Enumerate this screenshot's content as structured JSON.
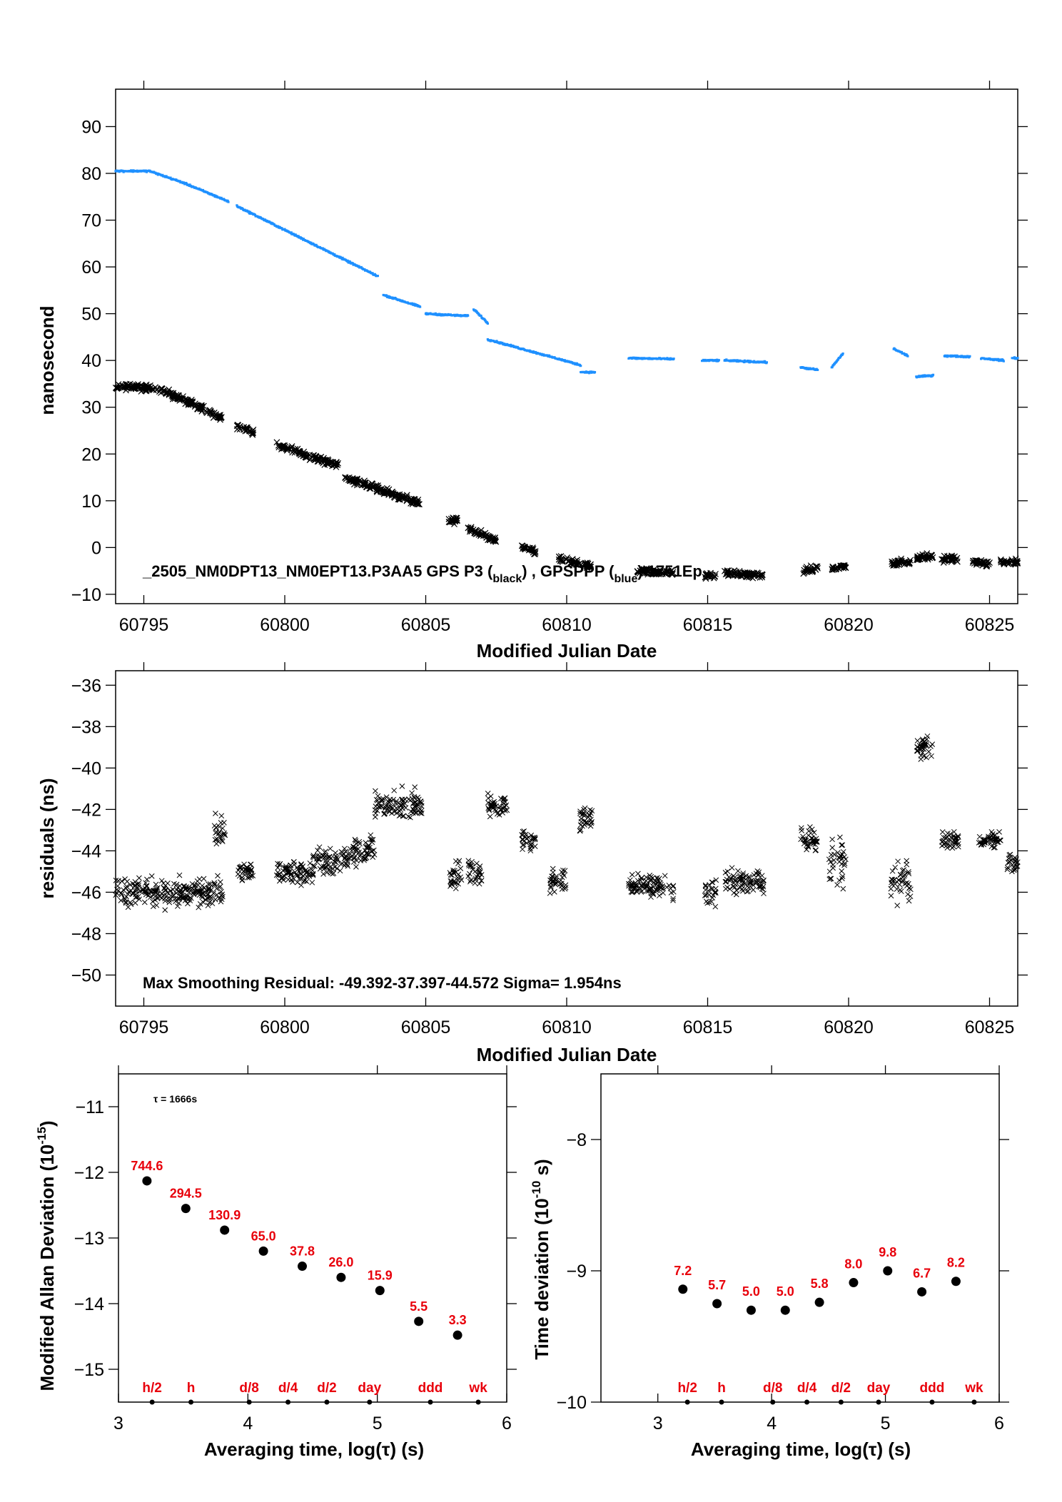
{
  "colors": {
    "black_series": "#000000",
    "blue_series": "#1e90ff",
    "label_red": "#e8000b"
  },
  "chart_data": [
    {
      "type": "scatter",
      "name": "clock-comparison",
      "xlabel": "Modified Julian Date",
      "ylabel": "nanosecond",
      "xlim": [
        60794.0,
        60826.0
      ],
      "ylim": [
        -12,
        98
      ],
      "xticks": [
        60795,
        60800,
        60805,
        60810,
        60815,
        60820,
        60825
      ],
      "yticks": [
        -10,
        0,
        10,
        20,
        30,
        40,
        50,
        60,
        70,
        80,
        90
      ],
      "annotation": "_2505_NM0DPT13_NM0EPT13.P3AA5     GPS P3 (",
      "annotation_sub1": "black",
      "annotation_mid": ") , GPSPPP (",
      "annotation_sub2": "blue",
      "annotation_end": ")   1751Ep",
      "blue_segments": [
        {
          "x": [
            60794.0,
            60795.2,
            60796.4,
            60798.0
          ],
          "y": [
            80.5,
            80.5,
            78.0,
            74.0
          ]
        },
        {
          "x": [
            60798.3,
            60803.3
          ],
          "y": [
            73.0,
            58.0
          ]
        },
        {
          "x": [
            60803.5,
            60804.8
          ],
          "y": [
            54.0,
            51.5
          ]
        },
        {
          "x": [
            60805.0,
            60806.5
          ],
          "y": [
            50.0,
            49.5
          ]
        },
        {
          "x": [
            60806.7,
            60807.2
          ],
          "y": [
            51.0,
            48.0
          ]
        },
        {
          "x": [
            60807.2,
            60810.5
          ],
          "y": [
            44.5,
            39.0
          ]
        },
        {
          "x": [
            60810.5,
            60811.0
          ],
          "y": [
            37.5,
            37.5
          ]
        },
        {
          "x": [
            60812.2,
            60813.8
          ],
          "y": [
            40.5,
            40.3
          ]
        },
        {
          "x": [
            60814.8,
            60815.4
          ],
          "y": [
            40.0,
            40.0
          ]
        },
        {
          "x": [
            60815.6,
            60817.1
          ],
          "y": [
            40.0,
            39.6
          ]
        },
        {
          "x": [
            60818.3,
            60818.9
          ],
          "y": [
            38.5,
            38.0
          ]
        },
        {
          "x": [
            60819.4,
            60819.8
          ],
          "y": [
            38.5,
            41.5
          ]
        },
        {
          "x": [
            60821.6,
            60822.1
          ],
          "y": [
            42.5,
            41.0
          ]
        },
        {
          "x": [
            60822.4,
            60823.0
          ],
          "y": [
            36.5,
            36.8
          ]
        },
        {
          "x": [
            60823.4,
            60824.3
          ],
          "y": [
            41.0,
            40.8
          ]
        },
        {
          "x": [
            60824.7,
            60825.5
          ],
          "y": [
            40.5,
            40.0
          ]
        },
        {
          "x": [
            60825.8,
            60826.0
          ],
          "y": [
            40.5,
            40.5
          ]
        }
      ],
      "black_segments": [
        {
          "x": [
            60794.0,
            60795.5,
            60797.0,
            60797.8
          ],
          "y": [
            34.5,
            34.0,
            30.0,
            27.5
          ]
        },
        {
          "x": [
            60798.3,
            60798.9
          ],
          "y": [
            26.0,
            24.5
          ]
        },
        {
          "x": [
            60799.7,
            60801.9
          ],
          "y": [
            22.0,
            17.5
          ]
        },
        {
          "x": [
            60802.1,
            60804.8
          ],
          "y": [
            15.0,
            9.5
          ]
        },
        {
          "x": [
            60805.8,
            60806.2
          ],
          "y": [
            6.0,
            5.5
          ]
        },
        {
          "x": [
            60806.5,
            60807.5
          ],
          "y": [
            4.0,
            1.5
          ]
        },
        {
          "x": [
            60808.4,
            60808.9
          ],
          "y": [
            0.0,
            -1.0
          ]
        },
        {
          "x": [
            60809.7,
            60810.9
          ],
          "y": [
            -2.5,
            -4.0
          ]
        },
        {
          "x": [
            60812.5,
            60813.8
          ],
          "y": [
            -5.0,
            -5.5
          ]
        },
        {
          "x": [
            60814.9,
            60815.3
          ],
          "y": [
            -6.0,
            -6.0
          ]
        },
        {
          "x": [
            60815.6,
            60817.0
          ],
          "y": [
            -5.5,
            -6.0
          ]
        },
        {
          "x": [
            60818.4,
            60818.9
          ],
          "y": [
            -5.0,
            -4.5
          ]
        },
        {
          "x": [
            60819.4,
            60819.9
          ],
          "y": [
            -4.5,
            -4.0
          ]
        },
        {
          "x": [
            60821.5,
            60822.2
          ],
          "y": [
            -3.5,
            -3.0
          ]
        },
        {
          "x": [
            60822.4,
            60823.0
          ],
          "y": [
            -2.0,
            -2.0
          ]
        },
        {
          "x": [
            60823.3,
            60823.9
          ],
          "y": [
            -2.5,
            -2.5
          ]
        },
        {
          "x": [
            60824.4,
            60825.0
          ],
          "y": [
            -3.0,
            -3.5
          ]
        },
        {
          "x": [
            60825.4,
            60826.0
          ],
          "y": [
            -3.0,
            -3.0
          ]
        }
      ]
    },
    {
      "type": "scatter",
      "name": "residuals",
      "xlabel": "Modified Julian Date",
      "ylabel": "residuals (ns)",
      "xlim": [
        60794.0,
        60826.0
      ],
      "ylim": [
        -51.5,
        -35.3
      ],
      "xticks": [
        60795,
        60800,
        60805,
        60810,
        60815,
        60820,
        60825
      ],
      "yticks": [
        -50,
        -48,
        -46,
        -44,
        -42,
        -40,
        -38,
        -36
      ],
      "annotation": "Max Smoothing Residual: -49.392-37.397-44.572  Sigma= 1.954ns",
      "clusters": [
        {
          "x": [
            60794.0,
            60797.8
          ],
          "center": -46.0,
          "spread": 1.0
        },
        {
          "x": [
            60797.5,
            60797.9
          ],
          "center": -43.0,
          "spread": 1.6
        },
        {
          "x": [
            60798.3,
            60798.9
          ],
          "center": -45.0,
          "spread": 0.7
        },
        {
          "x": [
            60799.7,
            60801.0
          ],
          "center": -45.0,
          "spread": 0.9
        },
        {
          "x": [
            60801.0,
            60802.3
          ],
          "center": -44.5,
          "spread": 1.0
        },
        {
          "x": [
            60802.3,
            60803.2
          ],
          "center": -44.0,
          "spread": 1.0
        },
        {
          "x": [
            60803.2,
            60804.9
          ],
          "center": -41.8,
          "spread": 1.0
        },
        {
          "x": [
            60805.8,
            60806.3
          ],
          "center": -45.2,
          "spread": 1.1
        },
        {
          "x": [
            60806.5,
            60807.0
          ],
          "center": -45.0,
          "spread": 1.0
        },
        {
          "x": [
            60807.2,
            60807.9
          ],
          "center": -41.8,
          "spread": 0.8
        },
        {
          "x": [
            60808.4,
            60808.9
          ],
          "center": -43.5,
          "spread": 0.8
        },
        {
          "x": [
            60809.4,
            60810.0
          ],
          "center": -45.5,
          "spread": 1.0
        },
        {
          "x": [
            60810.4,
            60810.9
          ],
          "center": -42.5,
          "spread": 0.8
        },
        {
          "x": [
            60812.2,
            60813.8
          ],
          "center": -45.7,
          "spread": 0.8
        },
        {
          "x": [
            60814.9,
            60815.3
          ],
          "center": -46.0,
          "spread": 0.8
        },
        {
          "x": [
            60815.6,
            60817.0
          ],
          "center": -45.5,
          "spread": 0.9
        },
        {
          "x": [
            60818.3,
            60818.9
          ],
          "center": -43.5,
          "spread": 1.0
        },
        {
          "x": [
            60819.3,
            60819.9
          ],
          "center": -44.5,
          "spread": 1.8
        },
        {
          "x": [
            60821.5,
            60822.2
          ],
          "center": -45.5,
          "spread": 1.2
        },
        {
          "x": [
            60822.4,
            60823.0
          ],
          "center": -39.0,
          "spread": 0.7
        },
        {
          "x": [
            60823.3,
            60823.9
          ],
          "center": -43.5,
          "spread": 0.6
        },
        {
          "x": [
            60824.6,
            60825.4
          ],
          "center": -43.5,
          "spread": 0.6
        },
        {
          "x": [
            60825.6,
            60826.0
          ],
          "center": -44.5,
          "spread": 0.7
        }
      ]
    },
    {
      "type": "scatter",
      "name": "modified-allan-deviation",
      "xlabel": "Averaging time, log(τ) (s)",
      "ylabel": "Modified Allan Deviation (10",
      "ylabel_sup": "-15",
      "ylabel_end": ")",
      "xlim": [
        3,
        6
      ],
      "ylim": [
        -15.5,
        -10.5
      ],
      "xticks": [
        3,
        4,
        5,
        6
      ],
      "yticks": [
        -15,
        -14,
        -13,
        -12,
        -11
      ],
      "tau_note": "τ = 1666s",
      "x": [
        3.22,
        3.52,
        3.82,
        4.12,
        4.42,
        4.72,
        5.02,
        5.32,
        5.62
      ],
      "y": [
        -12.13,
        -12.55,
        -12.88,
        -13.2,
        -13.43,
        -13.6,
        -13.8,
        -14.27,
        -14.48
      ],
      "labels": [
        "744.6",
        "294.5",
        "130.9",
        "65.0",
        "37.8",
        "26.0",
        "15.9",
        "5.5",
        "3.3"
      ],
      "markers": [
        {
          "x": 3.26,
          "label": "h/2"
        },
        {
          "x": 3.56,
          "label": "h"
        },
        {
          "x": 4.01,
          "label": "d/8"
        },
        {
          "x": 4.31,
          "label": "d/4"
        },
        {
          "x": 4.61,
          "label": "d/2"
        },
        {
          "x": 4.94,
          "label": "day"
        },
        {
          "x": 5.41,
          "label": "ddd"
        },
        {
          "x": 5.78,
          "label": "wk"
        }
      ]
    },
    {
      "type": "scatter",
      "name": "time-deviation",
      "xlabel": "Averaging time, log(τ) (s)",
      "ylabel": "Time deviation (10",
      "ylabel_sup": "-10",
      "ylabel_end": " s)",
      "xlim": [
        2.5,
        6.0
      ],
      "ylim": [
        -10,
        -7.5
      ],
      "xticks": [
        3,
        4,
        5,
        6
      ],
      "yticks": [
        -10,
        -9,
        -8
      ],
      "x": [
        3.22,
        3.52,
        3.82,
        4.12,
        4.42,
        4.72,
        5.02,
        5.32,
        5.62
      ],
      "y": [
        -9.14,
        -9.25,
        -9.3,
        -9.3,
        -9.24,
        -9.09,
        -9.0,
        -9.16,
        -9.08
      ],
      "labels": [
        "7.2",
        "5.7",
        "5.0",
        "5.0",
        "5.8",
        "8.0",
        "9.8",
        "6.7",
        "8.2"
      ],
      "markers": [
        {
          "x": 3.26,
          "label": "h/2"
        },
        {
          "x": 3.56,
          "label": "h"
        },
        {
          "x": 4.01,
          "label": "d/8"
        },
        {
          "x": 4.31,
          "label": "d/4"
        },
        {
          "x": 4.61,
          "label": "d/2"
        },
        {
          "x": 4.94,
          "label": "day"
        },
        {
          "x": 5.41,
          "label": "ddd"
        },
        {
          "x": 5.78,
          "label": "wk"
        }
      ]
    }
  ]
}
